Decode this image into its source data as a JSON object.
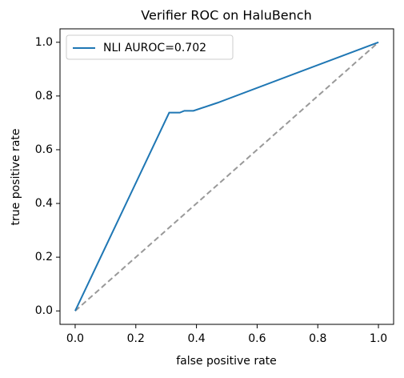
{
  "chart_data": {
    "type": "line",
    "title": "Verifier ROC on HaluBench",
    "x_label": "false positive rate",
    "y_label": "true positive rate",
    "xlim": [
      -0.05,
      1.05
    ],
    "ylim": [
      -0.05,
      1.05
    ],
    "xticks": [
      {
        "value": 0,
        "label": "0.0"
      },
      0.2,
      0.4,
      0.6,
      0.8,
      {
        "value": 1,
        "label": "1.0"
      }
    ],
    "yticks": [
      {
        "value": 0,
        "label": "0.0"
      },
      0.2,
      0.4,
      0.6,
      0.8,
      {
        "value": 1,
        "label": "1.0"
      }
    ],
    "legend": "upper left",
    "series": [
      {
        "name": "NLI AUROC=0.702",
        "color": "#1f77b4",
        "x": [
          0,
          0.31,
          0.345,
          0.36,
          0.39,
          0.47,
          1
        ],
        "values": [
          0,
          0.738,
          0.738,
          0.745,
          0.745,
          0.775,
          1
        ]
      },
      {
        "color": "#999999",
        "dash": true,
        "x": [
          0,
          1
        ],
        "values": [
          0,
          1
        ]
      }
    ]
  }
}
